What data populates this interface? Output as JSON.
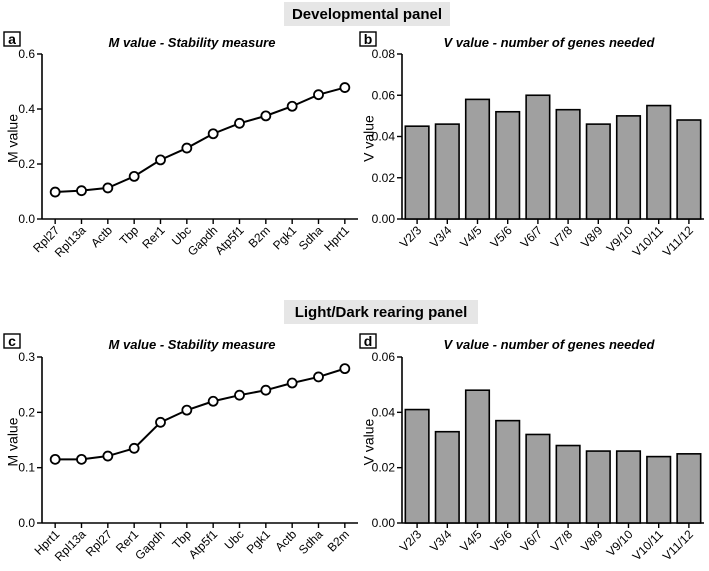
{
  "sections": {
    "developmental": "Developmental panel",
    "light_dark": "Light/Dark rearing panel"
  },
  "chart_data": [
    {
      "id": "a",
      "panel_letter": "a",
      "type": "line",
      "title": "M value - Stability measure",
      "xlabel": "",
      "ylabel": "M value",
      "ylim": [
        0,
        0.6
      ],
      "yticks": [
        0,
        0.2,
        0.4,
        0.6
      ],
      "ytick_labels": [
        "0.0",
        "0.2",
        "0.4",
        "0.6"
      ],
      "categories": [
        "Rpl27",
        "Rpl13a",
        "Actb",
        "Tbp",
        "Rer1",
        "Ubc",
        "Gapdh",
        "Atp5f1",
        "B2m",
        "Pgk1",
        "Sdha",
        "Hprt1"
      ],
      "values": [
        0.098,
        0.103,
        0.113,
        0.155,
        0.215,
        0.258,
        0.31,
        0.348,
        0.375,
        0.41,
        0.452,
        0.478
      ],
      "colors": {
        "line": "#000000",
        "marker_fill": "#ffffff"
      }
    },
    {
      "id": "b",
      "panel_letter": "b",
      "type": "bar",
      "title": "V value - number of genes needed",
      "xlabel": "",
      "ylabel": "V value",
      "ylim": [
        0,
        0.08
      ],
      "yticks": [
        0,
        0.02,
        0.04,
        0.06,
        0.08
      ],
      "ytick_labels": [
        "0.00",
        "0.02",
        "0.04",
        "0.06",
        "0.08"
      ],
      "categories": [
        "V2/3",
        "V3/4",
        "V4/5",
        "V5/6",
        "V6/7",
        "V7/8",
        "V8/9",
        "V9/10",
        "V10/11",
        "V11/12"
      ],
      "values": [
        0.045,
        0.046,
        0.058,
        0.052,
        0.06,
        0.053,
        0.046,
        0.05,
        0.055,
        0.048
      ],
      "colors": {
        "bar": "#a0a0a0",
        "edge": "#000000"
      }
    },
    {
      "id": "c",
      "panel_letter": "c",
      "type": "line",
      "title": "M value - Stability measure",
      "xlabel": "",
      "ylabel": "M value",
      "ylim": [
        0,
        0.3
      ],
      "yticks": [
        0,
        0.1,
        0.2,
        0.3
      ],
      "ytick_labels": [
        "0.0",
        "0.1",
        "0.2",
        "0.3"
      ],
      "categories": [
        "Hprt1",
        "Rpl13a",
        "Rpl27",
        "Rer1",
        "Gapdh",
        "Tbp",
        "Atp5f1",
        "Ubc",
        "Pgk1",
        "Actb",
        "Sdha",
        "B2m"
      ],
      "values": [
        0.115,
        0.115,
        0.121,
        0.135,
        0.182,
        0.204,
        0.22,
        0.231,
        0.24,
        0.253,
        0.264,
        0.279
      ],
      "colors": {
        "line": "#000000",
        "marker_fill": "#ffffff"
      }
    },
    {
      "id": "d",
      "panel_letter": "d",
      "type": "bar",
      "title": "V value - number of genes needed",
      "xlabel": "",
      "ylabel": "V value",
      "ylim": [
        0,
        0.06
      ],
      "yticks": [
        0,
        0.02,
        0.04,
        0.06
      ],
      "ytick_labels": [
        "0.00",
        "0.02",
        "0.04",
        "0.06"
      ],
      "categories": [
        "V2/3",
        "V3/4",
        "V4/5",
        "V5/6",
        "V6/7",
        "V7/8",
        "V8/9",
        "V9/10",
        "V10/11",
        "V11/12"
      ],
      "values": [
        0.041,
        0.033,
        0.048,
        0.037,
        0.032,
        0.028,
        0.026,
        0.026,
        0.024,
        0.025
      ],
      "colors": {
        "bar": "#a0a0a0",
        "edge": "#000000"
      }
    }
  ]
}
